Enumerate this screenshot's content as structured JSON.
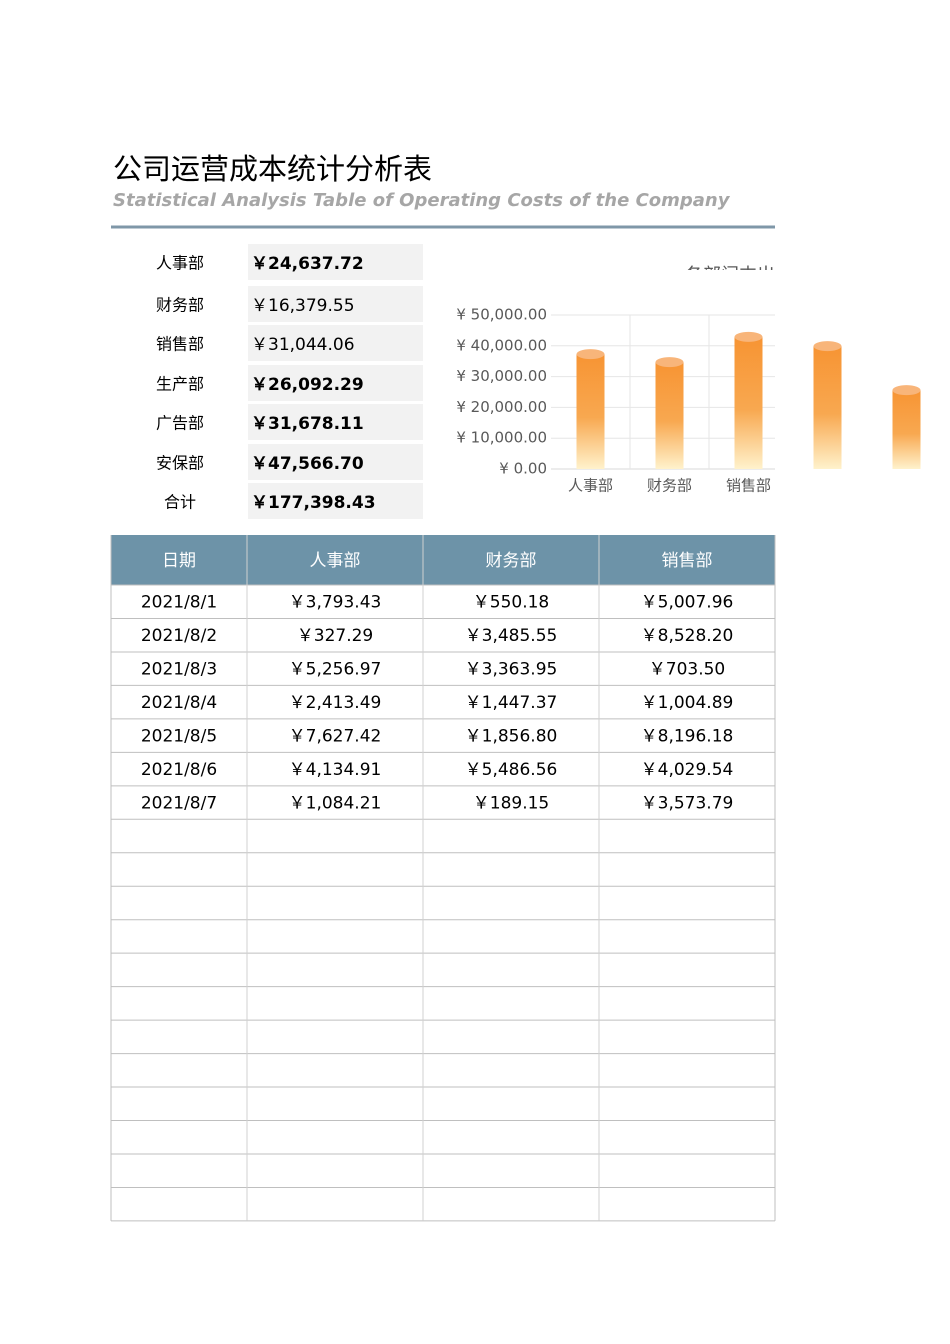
{
  "header": {
    "title": "公司运营成本统计分析表",
    "subtitle": "Statistical Analysis Table of Operating Costs of the Company"
  },
  "summary": [
    [
      "人事部",
      "￥24,637.72"
    ],
    [
      "财务部",
      "￥16,379.55"
    ],
    [
      "销售部",
      "￥31,044.06"
    ],
    [
      "生产部",
      "￥26,092.29"
    ],
    [
      "广告部",
      "￥31,678.11"
    ],
    [
      "安保部",
      "￥47,566.70"
    ],
    [
      "合计",
      "￥177,398.43"
    ]
  ],
  "chart_data": {
    "type": "bar",
    "title": "各部门支出",
    "categories": [
      "人事部",
      "财务部",
      "销售部",
      null,
      null
    ],
    "values": [
      37300,
      34700,
      42900,
      39900,
      25600
    ],
    "ylim": [
      0,
      50000
    ],
    "yticks": [
      {
        "value": 0,
        "label": "¥ 0.00"
      },
      {
        "value": 10000,
        "label": "¥ 10,000.00"
      },
      {
        "value": 20000,
        "label": "¥ 20,000.00"
      },
      {
        "value": 30000,
        "label": "¥ 30,000.00"
      },
      {
        "value": 40000,
        "label": "¥ 40,000.00"
      },
      {
        "value": 50000,
        "label": "¥ 50,000.00"
      }
    ],
    "grid": true,
    "color": "#f79433"
  },
  "table": {
    "header": [
      "日期",
      "人事部",
      "财务部",
      "销售部"
    ],
    "rows": [
      [
        "2021/8/1",
        "￥3,793.43",
        "￥550.18",
        "￥5,007.96"
      ],
      [
        "2021/8/2",
        "￥327.29",
        "￥3,485.55",
        "￥8,528.20"
      ],
      [
        "2021/8/3",
        "￥5,256.97",
        "￥3,363.95",
        "￥703.50"
      ],
      [
        "2021/8/4",
        "￥2,413.49",
        "￥1,447.37",
        "￥1,004.89"
      ],
      [
        "2021/8/5",
        "￥7,627.42",
        "￥1,856.80",
        "￥8,196.18"
      ],
      [
        "2021/8/6",
        "￥4,134.91",
        "￥5,486.56",
        "￥4,029.54"
      ],
      [
        "2021/8/7",
        "￥1,084.21",
        "￥189.15",
        "￥3,573.79"
      ]
    ]
  }
}
